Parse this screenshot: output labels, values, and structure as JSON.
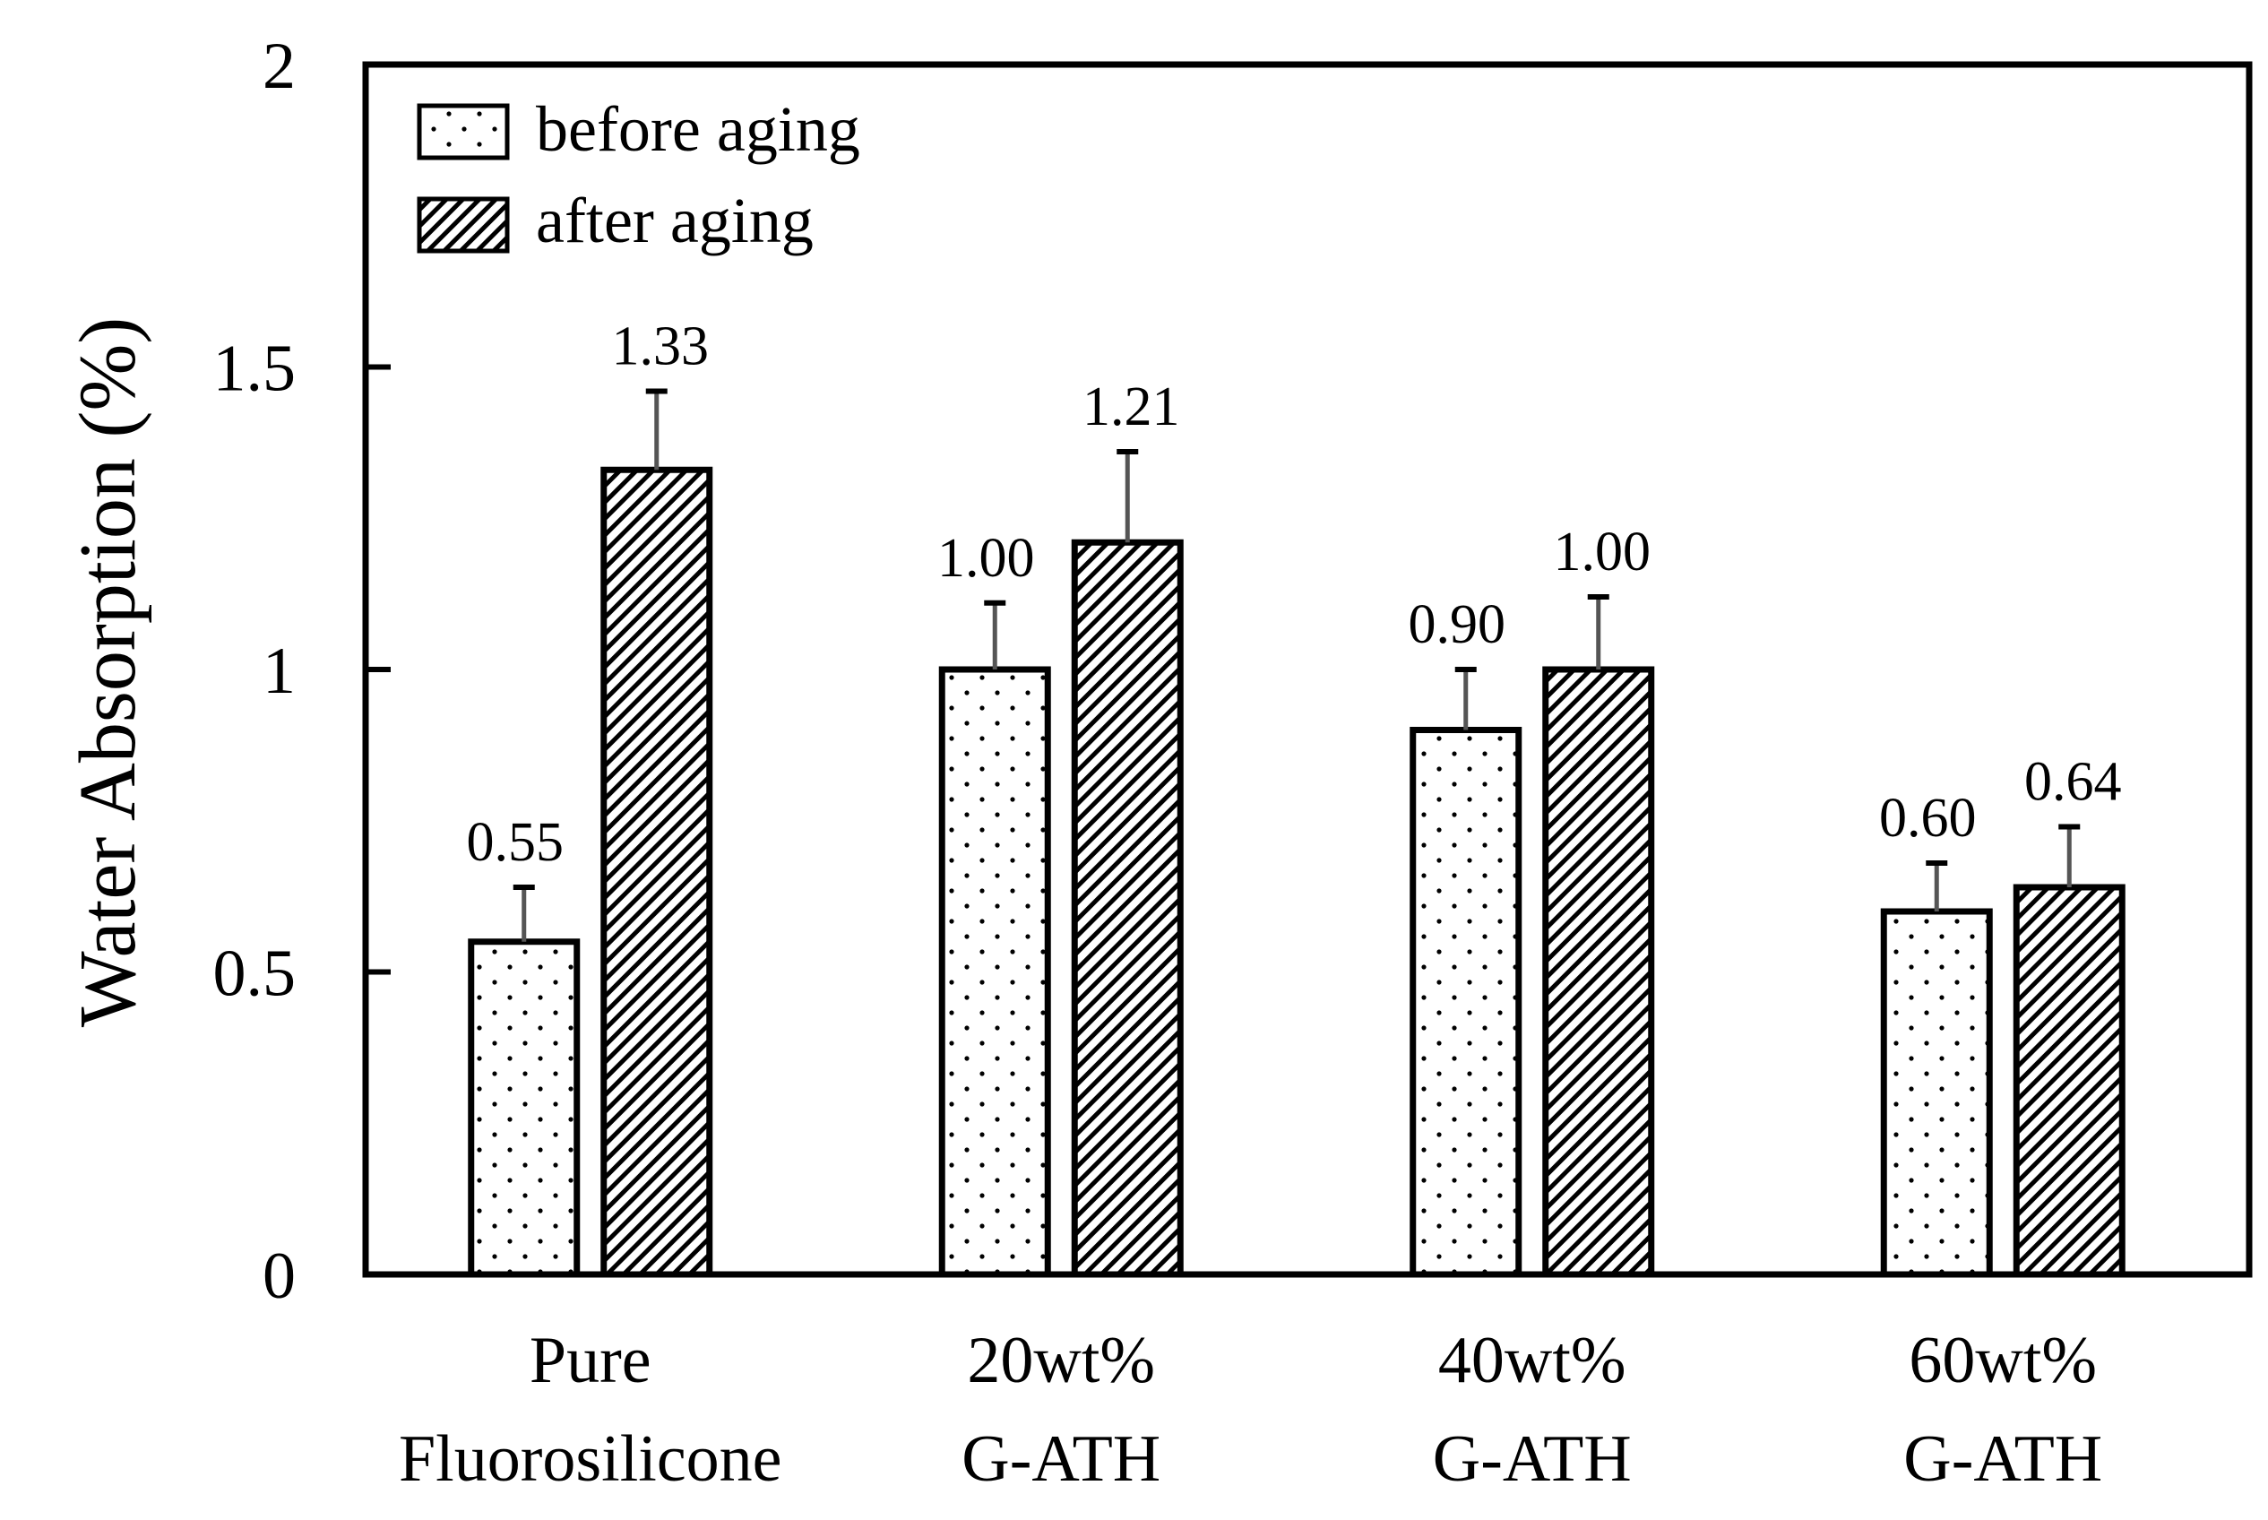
{
  "chart_data": {
    "type": "bar",
    "title": "",
    "xlabel": "",
    "ylabel": "Water Absorption (%)",
    "ylim": [
      0,
      2
    ],
    "yticks": [
      0,
      0.5,
      1,
      1.5,
      2
    ],
    "ytick_labels": [
      "0",
      "0.5",
      "1",
      "1.5",
      "2"
    ],
    "grid": false,
    "legend_position": "top-left",
    "categories": [
      [
        "Pure",
        "Fluorosilicone"
      ],
      [
        "20wt%",
        "G-ATH"
      ],
      [
        "40wt%",
        "G-ATH"
      ],
      [
        "60wt%",
        "G-ATH"
      ]
    ],
    "series": [
      {
        "name": "before aging",
        "pattern": "dots",
        "values": [
          0.55,
          1.0,
          0.9,
          0.6
        ],
        "value_labels": [
          "0.55",
          "1.00",
          "0.90",
          "0.60"
        ],
        "errors": [
          0.09,
          0.11,
          0.1,
          0.08
        ]
      },
      {
        "name": "after aging",
        "pattern": "hatch",
        "values": [
          1.33,
          1.21,
          1.0,
          0.64
        ],
        "value_labels": [
          "1.33",
          "1.21",
          "1.00",
          "0.64"
        ],
        "errors": [
          0.13,
          0.15,
          0.12,
          0.1
        ]
      }
    ],
    "colors": {
      "fill": "#ffffff",
      "stroke": "#000000",
      "errorbar": "#555555"
    }
  }
}
